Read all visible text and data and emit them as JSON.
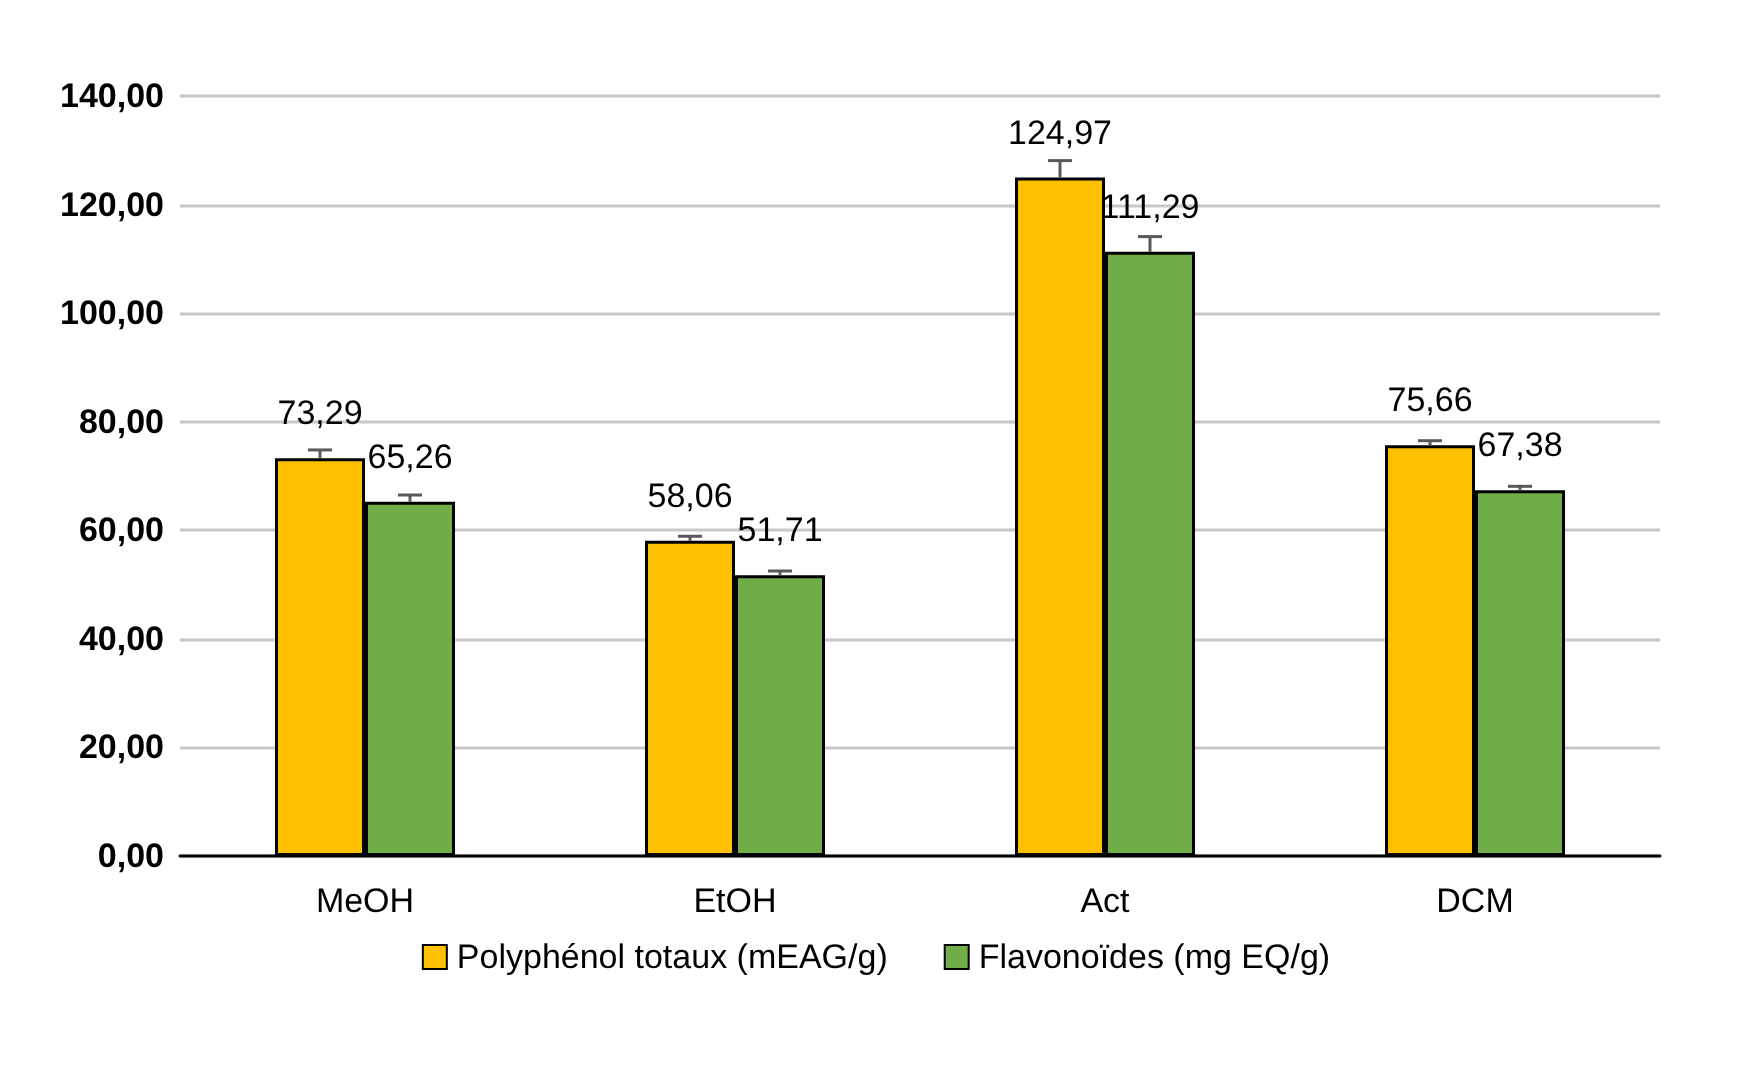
{
  "chart_data": {
    "type": "bar",
    "categories": [
      "MeOH",
      "EtOH",
      "Act",
      "DCM"
    ],
    "series": [
      {
        "name": "Polyphénol totaux (mEAG/g)",
        "color": "#ffc000",
        "values": [
          73.29,
          58.06,
          124.97,
          75.66
        ],
        "value_labels": [
          "73,29",
          "58,06",
          "124,97",
          "75,66"
        ],
        "errors": [
          [
            73.29,
            74.8
          ],
          [
            58.06,
            58.9
          ],
          [
            124.97,
            128.1
          ],
          [
            75.66,
            76.5
          ]
        ]
      },
      {
        "name": "Flavonoïdes (mg EQ/g)",
        "color": "#70ad47",
        "values": [
          65.26,
          51.71,
          111.29,
          67.38
        ],
        "value_labels": [
          "65,26",
          "51,71",
          "111,29",
          "67,38"
        ],
        "errors": [
          [
            65.26,
            66.5
          ],
          [
            51.71,
            52.5
          ],
          [
            111.29,
            114.1
          ],
          [
            67.38,
            68.1
          ]
        ]
      }
    ],
    "ylim": [
      0,
      140
    ],
    "yticks": [
      {
        "value": 0,
        "label": "0,00"
      },
      {
        "value": 20,
        "label": "20,00"
      },
      {
        "value": 40,
        "label": "40,00"
      },
      {
        "value": 60,
        "label": "60,00"
      },
      {
        "value": 80,
        "label": "80,00"
      },
      {
        "value": 100,
        "label": "100,00"
      },
      {
        "value": 120,
        "label": "120,00"
      },
      {
        "value": 140,
        "label": "140,00"
      }
    ],
    "grid": "y",
    "legend": "bottom"
  }
}
